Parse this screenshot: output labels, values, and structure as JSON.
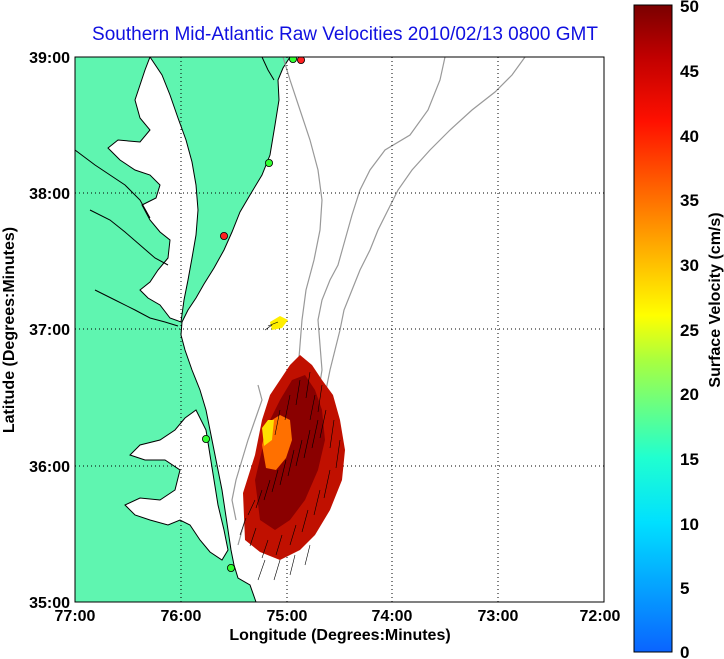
{
  "title": "Southern Mid-Atlantic Raw Velocities 2010/02/13 0800 GMT",
  "map": {
    "x_axis_label": "Longitude (Degrees:Minutes)",
    "y_axis_label": "Latitude (Degrees:Minutes)",
    "lon_range": [
      -77,
      -72
    ],
    "lat_range": [
      35,
      39
    ],
    "lon_ticks": [
      {
        "value": -77,
        "label": "77:00"
      },
      {
        "value": -76,
        "label": "76:00"
      },
      {
        "value": -75,
        "label": "75:00"
      },
      {
        "value": -74,
        "label": "74:00"
      },
      {
        "value": -73,
        "label": "73:00"
      },
      {
        "value": -72,
        "label": "72:00"
      }
    ],
    "lat_ticks": [
      {
        "value": 39,
        "label": "39:00"
      },
      {
        "value": 38,
        "label": "38:00"
      },
      {
        "value": 37,
        "label": "37:00"
      },
      {
        "value": 36,
        "label": "36:00"
      },
      {
        "value": 35,
        "label": "35:00"
      }
    ],
    "grid": "dotted",
    "land_color": "#5ff5b0",
    "coastline_color": "#000000",
    "bathymetry_color": "#999999",
    "station_markers": [
      {
        "lon": -74.85,
        "lat": 38.98,
        "color": "#ff2020"
      },
      {
        "lon": -74.95,
        "lat": 38.99,
        "color": "#33ff33"
      },
      {
        "lon": -75.17,
        "lat": 38.22,
        "color": "#33ff33"
      },
      {
        "lon": -75.55,
        "lat": 37.7,
        "color": "#ff2020"
      },
      {
        "lon": -75.7,
        "lat": 36.19,
        "color": "#33ff33"
      },
      {
        "lon": -75.5,
        "lat": 35.24,
        "color": "#33ff33"
      }
    ]
  },
  "colorbar": {
    "label": "Surface Velocity (cm/s)",
    "min": 0,
    "max": 50,
    "tick_labels": [
      "0",
      "5",
      "10",
      "15",
      "20",
      "25",
      "30",
      "35",
      "40",
      "45",
      "50"
    ],
    "colormap": "jet"
  }
}
